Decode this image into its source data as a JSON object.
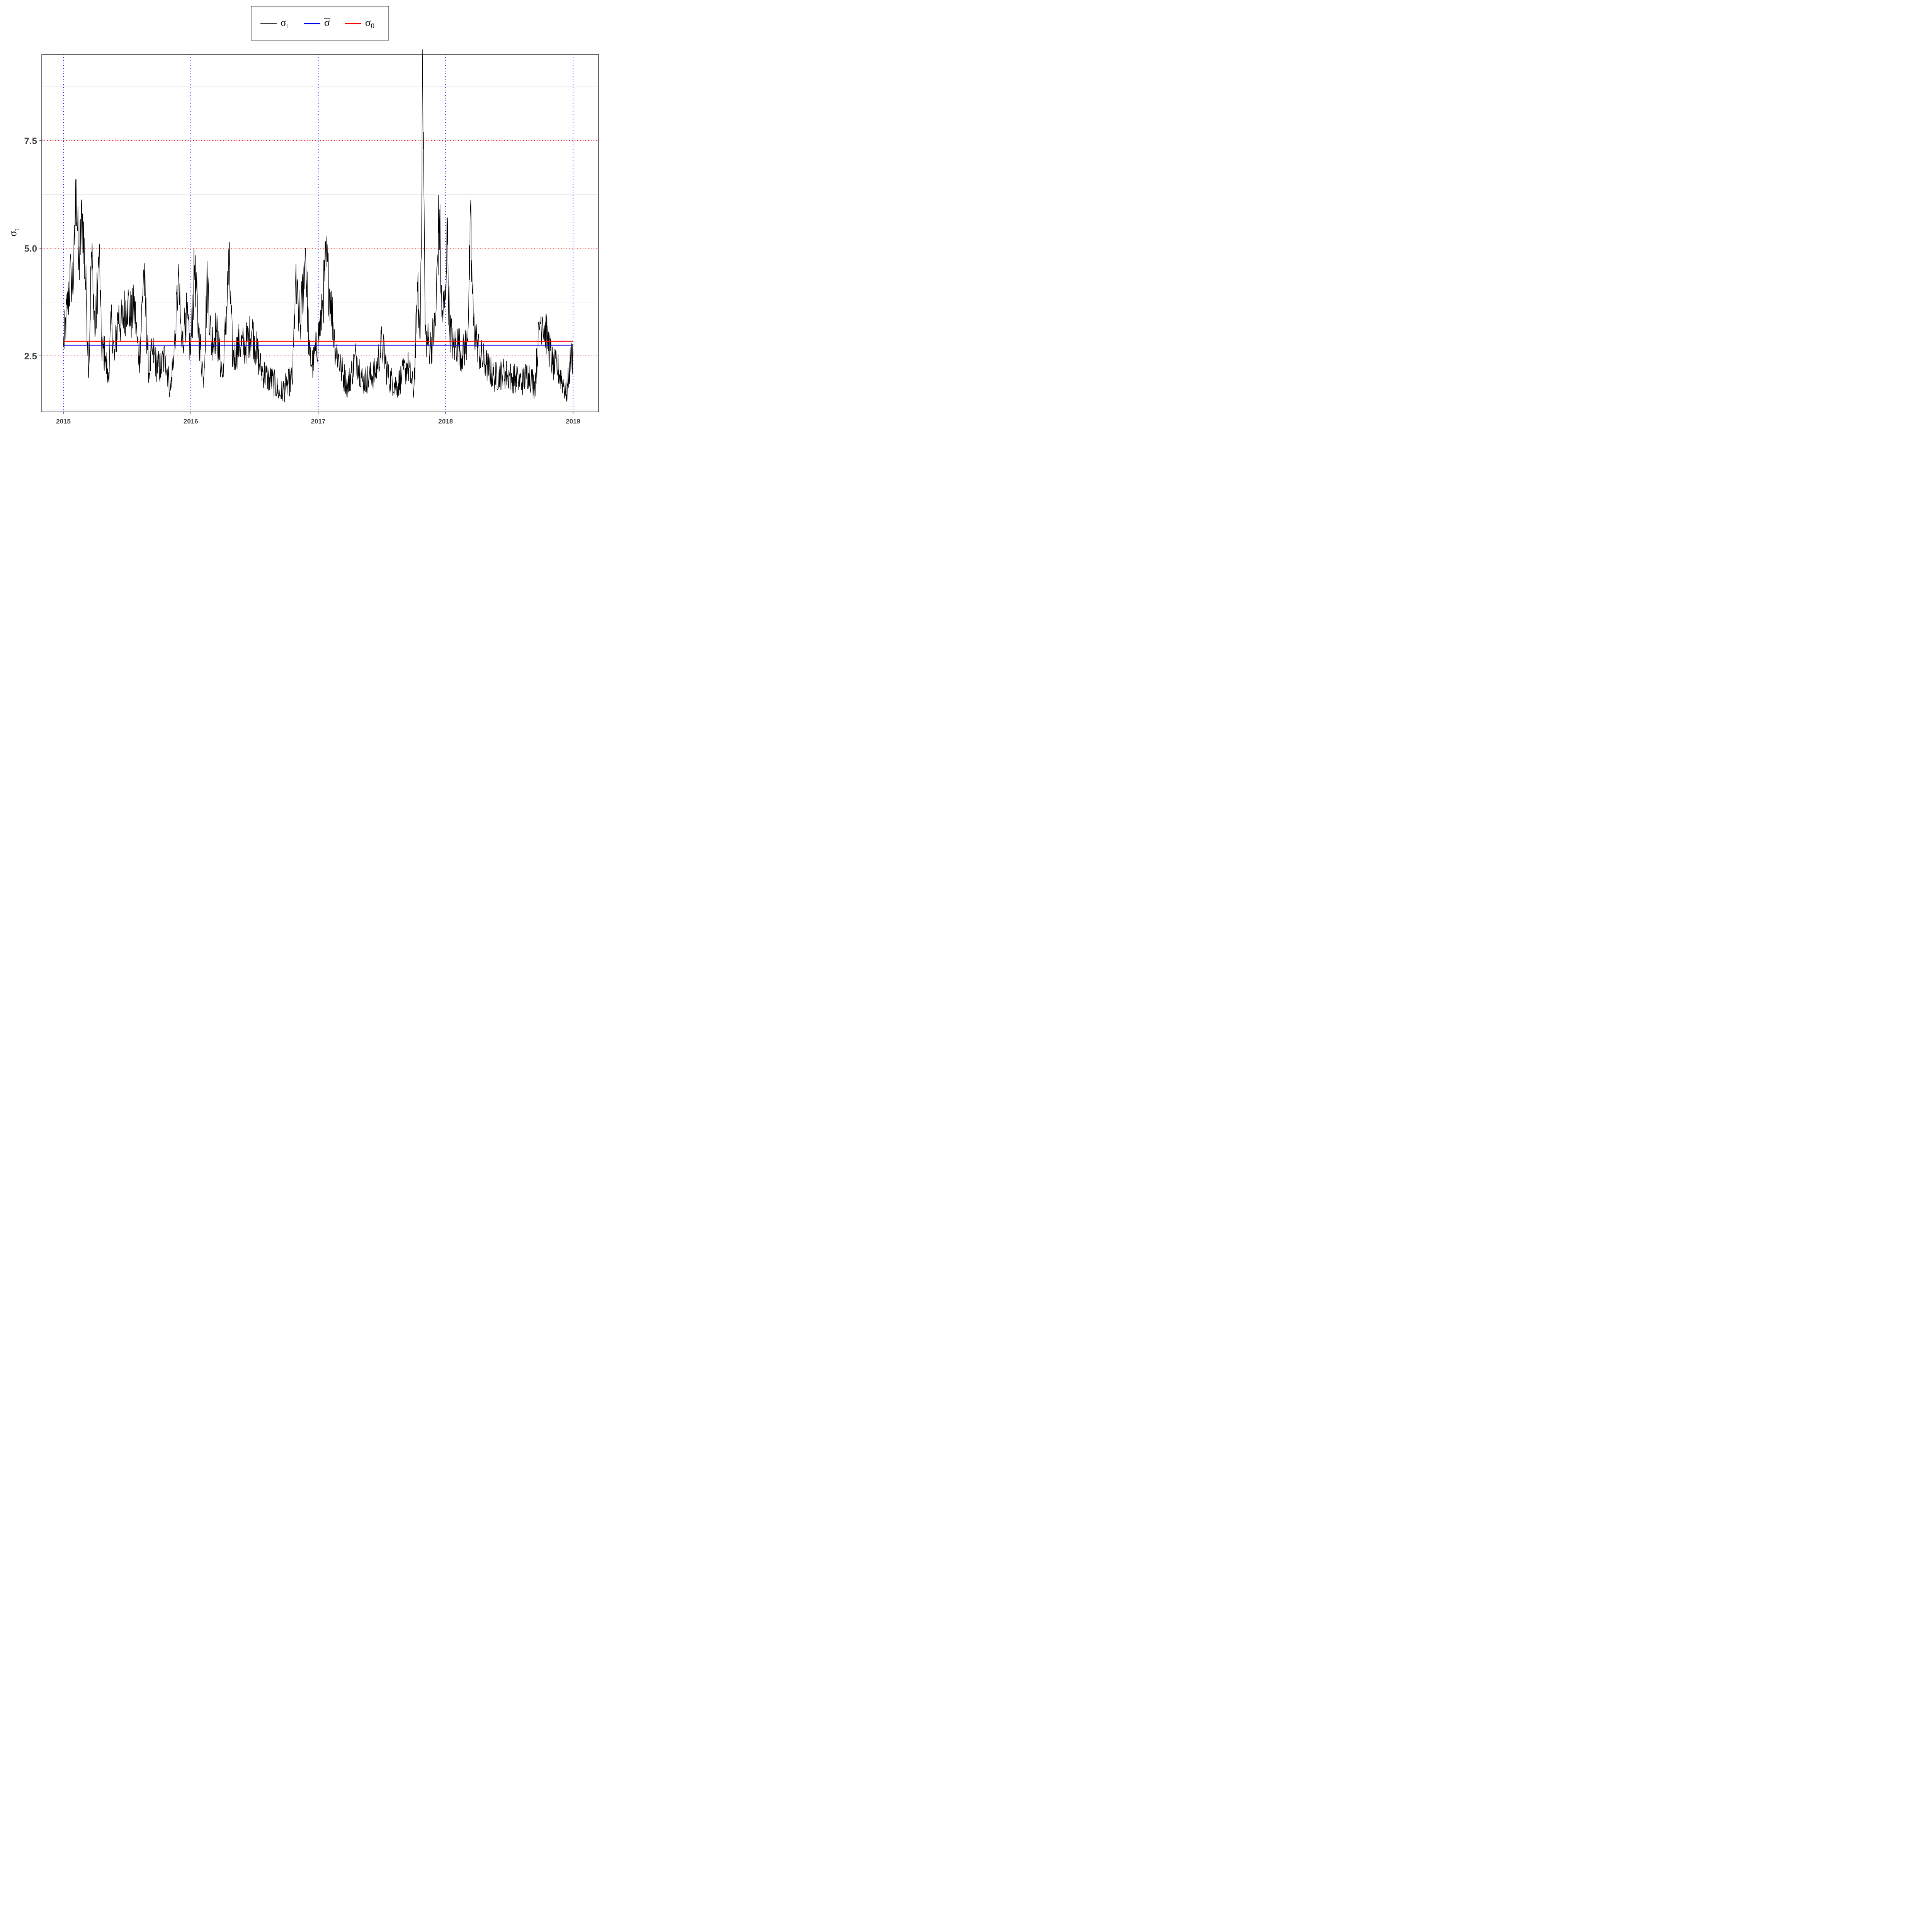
{
  "chart_data": {
    "type": "line",
    "xlabel": "",
    "ylabel": "σ",
    "ylabel_sub": "t",
    "x_ticks": [
      "2015",
      "2016",
      "2017",
      "2018",
      "2019"
    ],
    "y_ticks": [
      "2.5",
      "5.0",
      "7.5"
    ],
    "xlim": [
      2014.83,
      2019.2
    ],
    "ylim": [
      1.2,
      9.5
    ],
    "grid": true,
    "legend_position": "top",
    "legend": [
      {
        "symbol": "σ",
        "sub": "t",
        "bar": false,
        "color": "#000000"
      },
      {
        "symbol": "σ",
        "sub": "",
        "bar": true,
        "color": "#0000ee"
      },
      {
        "symbol": "σ",
        "sub": "0",
        "bar": false,
        "color": "#ff0000"
      }
    ],
    "reference_lines": {
      "horizontal_dotted": [
        2.5,
        5.0,
        7.5
      ],
      "horizontal_dotted_color": "#ff0000",
      "vertical_dotted": [
        2015,
        2016,
        2017,
        2018,
        2019
      ],
      "vertical_dotted_color": "#0000ff"
    },
    "series": [
      {
        "name": "σ_t",
        "color": "#000000",
        "x": [
          2015.0,
          2015.03,
          2015.06,
          2015.08,
          2015.1,
          2015.12,
          2015.15,
          2015.18,
          2015.2,
          2015.22,
          2015.25,
          2015.28,
          2015.3,
          2015.33,
          2015.35,
          2015.38,
          2015.4,
          2015.43,
          2015.46,
          2015.5,
          2015.53,
          2015.56,
          2015.58,
          2015.6,
          2015.63,
          2015.67,
          2015.7,
          2015.73,
          2015.76,
          2015.8,
          2015.84,
          2015.88,
          2015.9,
          2015.93,
          2015.96,
          2016.0,
          2016.03,
          2016.06,
          2016.1,
          2016.13,
          2016.16,
          2016.2,
          2016.25,
          2016.3,
          2016.33,
          2016.38,
          2016.42,
          2016.48,
          2016.55,
          2016.6,
          2016.65,
          2016.7,
          2016.75,
          2016.8,
          2016.82,
          2016.86,
          2016.9,
          2016.93,
          2016.96,
          2017.0,
          2017.03,
          2017.06,
          2017.1,
          2017.13,
          2017.18,
          2017.23,
          2017.3,
          2017.35,
          2017.4,
          2017.45,
          2017.5,
          2017.55,
          2017.62,
          2017.7,
          2017.75,
          2017.78,
          2017.8,
          2017.82,
          2017.84,
          2017.88,
          2017.92,
          2017.95,
          2017.97,
          2018.0,
          2018.01,
          2018.03,
          2018.06,
          2018.1,
          2018.13,
          2018.17,
          2018.2,
          2018.2,
          2018.22,
          2018.27,
          2018.32,
          2018.38,
          2018.45,
          2018.52,
          2018.6,
          2018.65,
          2018.7,
          2018.74,
          2018.76,
          2018.8,
          2018.84,
          2018.88,
          2018.92,
          2018.95,
          2018.98,
          2019.0
        ],
        "values": [
          2.7,
          3.6,
          4.4,
          4.2,
          6.6,
          4.5,
          5.8,
          3.8,
          2.2,
          4.9,
          3.0,
          4.9,
          2.7,
          2.5,
          1.9,
          3.4,
          2.4,
          3.5,
          3.2,
          3.8,
          3.4,
          3.6,
          2.8,
          2.5,
          4.5,
          2.1,
          2.6,
          2.3,
          2.2,
          2.5,
          1.7,
          3.0,
          4.3,
          2.7,
          3.5,
          2.6,
          4.6,
          3.1,
          2.0,
          4.3,
          2.8,
          3.1,
          2.0,
          4.6,
          2.4,
          2.8,
          2.7,
          3.1,
          2.2,
          2.0,
          1.9,
          1.6,
          1.8,
          2.0,
          4.1,
          3.2,
          5.0,
          2.5,
          2.3,
          2.9,
          3.5,
          4.7,
          3.8,
          2.8,
          2.2,
          1.8,
          2.5,
          1.9,
          2.0,
          2.1,
          2.8,
          2.0,
          1.8,
          2.3,
          1.7,
          4.0,
          2.9,
          9.1,
          3.0,
          2.7,
          3.2,
          5.9,
          3.4,
          3.8,
          5.7,
          3.2,
          2.7,
          2.8,
          2.5,
          2.9,
          5.6,
          4.8,
          3.2,
          2.5,
          2.3,
          2.0,
          2.1,
          2.0,
          1.9,
          2.1,
          1.8,
          3.3,
          3.4,
          2.9,
          2.3,
          2.2,
          1.9,
          1.6,
          2.4,
          2.5
        ]
      },
      {
        "name": "σ̄",
        "color": "#0000ee",
        "x": [
          2015,
          2019
        ],
        "values": [
          2.75,
          2.75
        ]
      },
      {
        "name": "σ_0",
        "color": "#ff0000",
        "x": [
          2015,
          2019
        ],
        "values": [
          2.84,
          2.84
        ]
      }
    ]
  }
}
